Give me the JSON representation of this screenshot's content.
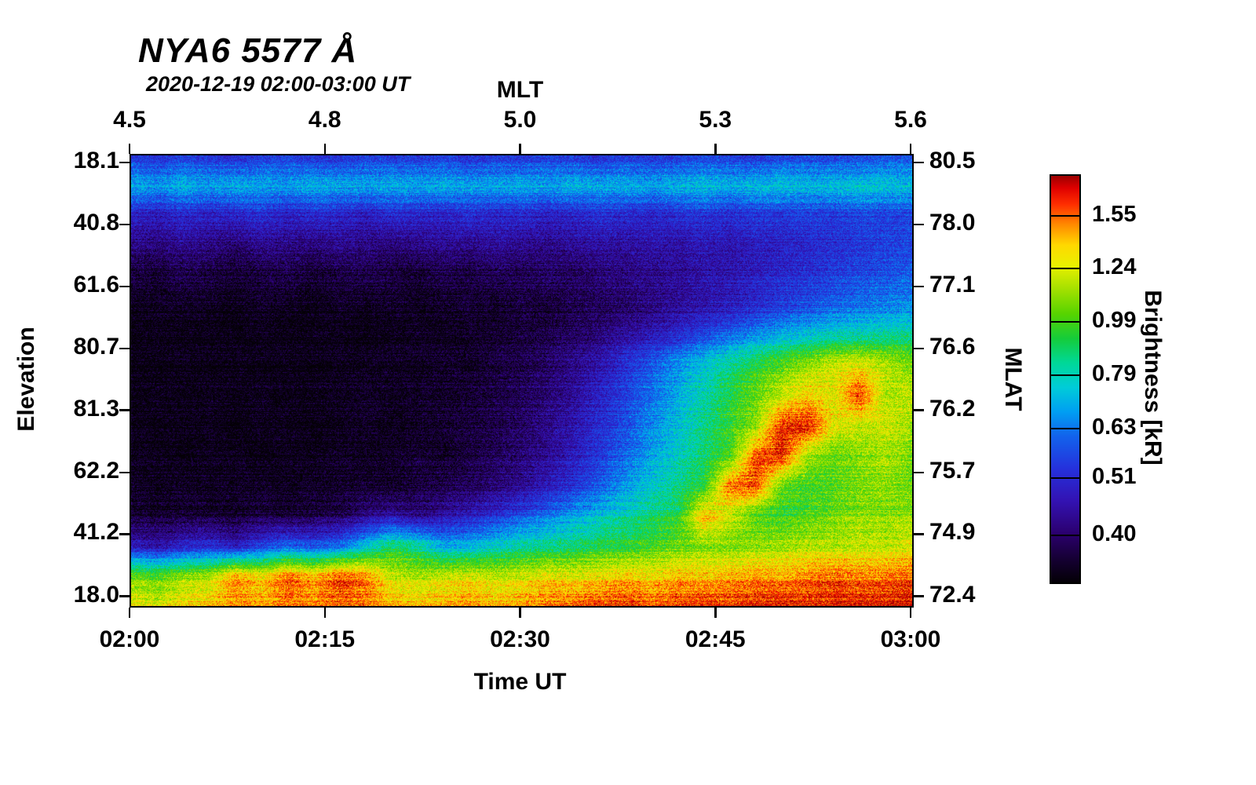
{
  "chart_data": {
    "type": "heatmap",
    "title": "NYA6 5577 Å",
    "subtitle": "2020-12-19 02:00-03:00 UT",
    "instrument": "NYA6",
    "wavelength_angstrom": "5577",
    "axes": {
      "top": {
        "label": "MLT",
        "tick_labels": [
          "4.5",
          "4.8",
          "5.0",
          "5.3",
          "5.6"
        ]
      },
      "bottom": {
        "label": "Time UT",
        "tick_labels": [
          "02:00",
          "02:15",
          "02:30",
          "02:45",
          "03:00"
        ]
      },
      "left": {
        "label": "Elevation",
        "tick_labels": [
          "18.1",
          "40.8",
          "61.6",
          "80.7",
          "81.3",
          "62.2",
          "41.2",
          "18.0"
        ]
      },
      "right": {
        "label": "MLAT",
        "tick_labels": [
          "80.5",
          "78.0",
          "77.1",
          "76.6",
          "76.2",
          "75.7",
          "74.9",
          "72.4"
        ]
      }
    },
    "colorbar": {
      "label": "Brightness [kR]",
      "tick_labels": [
        "1.55",
        "1.24",
        "0.99",
        "0.79",
        "0.63",
        "0.51",
        "0.40"
      ],
      "scale": "log",
      "vmin_kR": 0.33,
      "vmax_kR": 1.85,
      "colormap_stops": [
        {
          "t": 0.0,
          "c": "#040006"
        },
        {
          "t": 0.06,
          "c": "#160035"
        },
        {
          "t": 0.12,
          "c": "#2b006e"
        },
        {
          "t": 0.2,
          "c": "#3312b2"
        },
        {
          "t": 0.28,
          "c": "#2531dc"
        },
        {
          "t": 0.36,
          "c": "#1263ec"
        },
        {
          "t": 0.42,
          "c": "#009ff2"
        },
        {
          "t": 0.48,
          "c": "#00ccd8"
        },
        {
          "t": 0.54,
          "c": "#00d898"
        },
        {
          "t": 0.6,
          "c": "#15cc3a"
        },
        {
          "t": 0.66,
          "c": "#56d400"
        },
        {
          "t": 0.72,
          "c": "#a2e000"
        },
        {
          "t": 0.78,
          "c": "#eaf000"
        },
        {
          "t": 0.83,
          "c": "#ffd800"
        },
        {
          "t": 0.88,
          "c": "#ff8a00"
        },
        {
          "t": 0.93,
          "c": "#ff2e00"
        },
        {
          "t": 0.97,
          "c": "#df0000"
        },
        {
          "t": 1.0,
          "c": "#9b0000"
        }
      ]
    },
    "grid": {
      "x_start": "02:00",
      "x_end": "03:00",
      "x_step_minutes": 2,
      "cols": 31,
      "rows_top_to_bottom": 16,
      "row_order": "elevation scan north-to-south, top row = north horizon (18.1), bottom row = south horizon (18.0)"
    },
    "values_kR": [
      [
        0.55,
        0.53,
        0.56,
        0.54,
        0.52,
        0.55,
        0.57,
        0.54,
        0.53,
        0.56,
        0.55,
        0.54,
        0.56,
        0.53,
        0.55,
        0.54,
        0.56,
        0.55,
        0.53,
        0.56,
        0.54,
        0.55,
        0.57,
        0.56,
        0.54,
        0.57,
        0.58,
        0.56,
        0.57,
        0.59,
        0.58
      ],
      [
        0.7,
        0.68,
        0.72,
        0.69,
        0.71,
        0.7,
        0.68,
        0.72,
        0.7,
        0.69,
        0.71,
        0.7,
        0.72,
        0.69,
        0.7,
        0.71,
        0.69,
        0.72,
        0.7,
        0.71,
        0.69,
        0.72,
        0.74,
        0.71,
        0.73,
        0.75,
        0.72,
        0.74,
        0.76,
        0.75,
        0.74
      ],
      [
        0.5,
        0.48,
        0.51,
        0.49,
        0.5,
        0.52,
        0.49,
        0.51,
        0.5,
        0.48,
        0.51,
        0.5,
        0.49,
        0.52,
        0.5,
        0.51,
        0.49,
        0.5,
        0.52,
        0.51,
        0.5,
        0.52,
        0.53,
        0.51,
        0.54,
        0.53,
        0.55,
        0.54,
        0.56,
        0.55,
        0.56
      ],
      [
        0.42,
        0.41,
        0.43,
        0.42,
        0.4,
        0.43,
        0.42,
        0.41,
        0.43,
        0.42,
        0.41,
        0.42,
        0.43,
        0.42,
        0.44,
        0.43,
        0.42,
        0.44,
        0.45,
        0.44,
        0.46,
        0.45,
        0.47,
        0.46,
        0.48,
        0.49,
        0.5,
        0.52,
        0.53,
        0.55,
        0.56
      ],
      [
        0.37,
        0.36,
        0.38,
        0.37,
        0.36,
        0.37,
        0.38,
        0.36,
        0.37,
        0.38,
        0.37,
        0.36,
        0.38,
        0.37,
        0.39,
        0.38,
        0.4,
        0.39,
        0.41,
        0.42,
        0.43,
        0.44,
        0.46,
        0.47,
        0.49,
        0.51,
        0.53,
        0.55,
        0.57,
        0.58,
        0.6
      ],
      [
        0.34,
        0.34,
        0.35,
        0.34,
        0.33,
        0.35,
        0.34,
        0.33,
        0.35,
        0.34,
        0.35,
        0.34,
        0.35,
        0.36,
        0.35,
        0.37,
        0.36,
        0.38,
        0.39,
        0.4,
        0.42,
        0.44,
        0.46,
        0.48,
        0.51,
        0.54,
        0.57,
        0.6,
        0.62,
        0.64,
        0.66
      ],
      [
        0.33,
        0.34,
        0.33,
        0.34,
        0.33,
        0.34,
        0.33,
        0.34,
        0.34,
        0.33,
        0.34,
        0.35,
        0.34,
        0.35,
        0.36,
        0.37,
        0.38,
        0.4,
        0.42,
        0.45,
        0.48,
        0.52,
        0.57,
        0.62,
        0.67,
        0.72,
        0.76,
        0.8,
        0.82,
        0.84,
        0.85
      ],
      [
        0.33,
        0.33,
        0.34,
        0.33,
        0.34,
        0.33,
        0.34,
        0.33,
        0.34,
        0.34,
        0.35,
        0.34,
        0.36,
        0.35,
        0.37,
        0.38,
        0.4,
        0.43,
        0.47,
        0.53,
        0.6,
        0.68,
        0.76,
        0.85,
        0.95,
        1.05,
        1.15,
        1.25,
        1.3,
        1.2,
        1.1
      ],
      [
        0.33,
        0.34,
        0.33,
        0.34,
        0.33,
        0.34,
        0.33,
        0.34,
        0.34,
        0.35,
        0.34,
        0.35,
        0.35,
        0.36,
        0.37,
        0.39,
        0.41,
        0.44,
        0.49,
        0.55,
        0.62,
        0.7,
        0.8,
        0.92,
        1.05,
        1.2,
        1.35,
        1.25,
        1.65,
        1.15,
        1.2
      ],
      [
        0.34,
        0.33,
        0.34,
        0.34,
        0.33,
        0.34,
        0.34,
        0.33,
        0.34,
        0.35,
        0.34,
        0.35,
        0.36,
        0.37,
        0.38,
        0.4,
        0.43,
        0.47,
        0.52,
        0.58,
        0.66,
        0.75,
        0.85,
        0.98,
        1.12,
        1.7,
        1.75,
        1.3,
        1.2,
        1.25,
        1.15
      ],
      [
        0.34,
        0.34,
        0.33,
        0.34,
        0.34,
        0.33,
        0.34,
        0.34,
        0.35,
        0.34,
        0.35,
        0.36,
        0.35,
        0.37,
        0.39,
        0.41,
        0.44,
        0.48,
        0.54,
        0.61,
        0.69,
        0.78,
        0.88,
        1.0,
        1.6,
        1.72,
        1.15,
        1.05,
        1.1,
        1.15,
        1.08
      ],
      [
        0.35,
        0.34,
        0.35,
        0.34,
        0.35,
        0.35,
        0.34,
        0.35,
        0.35,
        0.36,
        0.35,
        0.37,
        0.38,
        0.39,
        0.41,
        0.44,
        0.48,
        0.53,
        0.6,
        0.68,
        0.76,
        0.85,
        0.95,
        1.55,
        1.65,
        1.05,
        0.98,
        1.02,
        1.08,
        1.12,
        1.05
      ],
      [
        0.36,
        0.35,
        0.36,
        0.36,
        0.35,
        0.37,
        0.36,
        0.37,
        0.38,
        0.42,
        0.45,
        0.42,
        0.45,
        0.48,
        0.52,
        0.57,
        0.62,
        0.68,
        0.74,
        0.8,
        0.86,
        0.92,
        1.4,
        1.2,
        1.0,
        0.95,
        1.0,
        1.05,
        1.1,
        1.08,
        1.12
      ],
      [
        0.48,
        0.46,
        0.5,
        0.52,
        0.48,
        0.55,
        0.6,
        0.58,
        0.62,
        0.75,
        0.9,
        0.85,
        0.7,
        0.72,
        0.78,
        0.82,
        0.85,
        0.88,
        0.92,
        0.95,
        1.0,
        1.05,
        1.1,
        1.08,
        1.12,
        1.15,
        1.2,
        1.18,
        1.22,
        1.2,
        1.25
      ],
      [
        1.05,
        1.0,
        1.1,
        1.15,
        1.45,
        1.3,
        1.55,
        1.4,
        1.6,
        1.5,
        1.2,
        1.15,
        1.2,
        1.25,
        1.18,
        1.22,
        1.28,
        1.25,
        1.3,
        1.35,
        1.3,
        1.38,
        1.35,
        1.4,
        1.45,
        1.42,
        1.5,
        1.55,
        1.48,
        1.52,
        1.55
      ],
      [
        1.3,
        1.25,
        1.35,
        1.4,
        1.5,
        1.45,
        1.55,
        1.5,
        1.6,
        1.55,
        1.45,
        1.4,
        1.45,
        1.5,
        1.42,
        1.48,
        1.55,
        1.6,
        1.65,
        1.7,
        1.6,
        1.65,
        1.7,
        1.68,
        1.72,
        1.75,
        1.7,
        1.74,
        1.78,
        1.75,
        1.8
      ]
    ]
  }
}
